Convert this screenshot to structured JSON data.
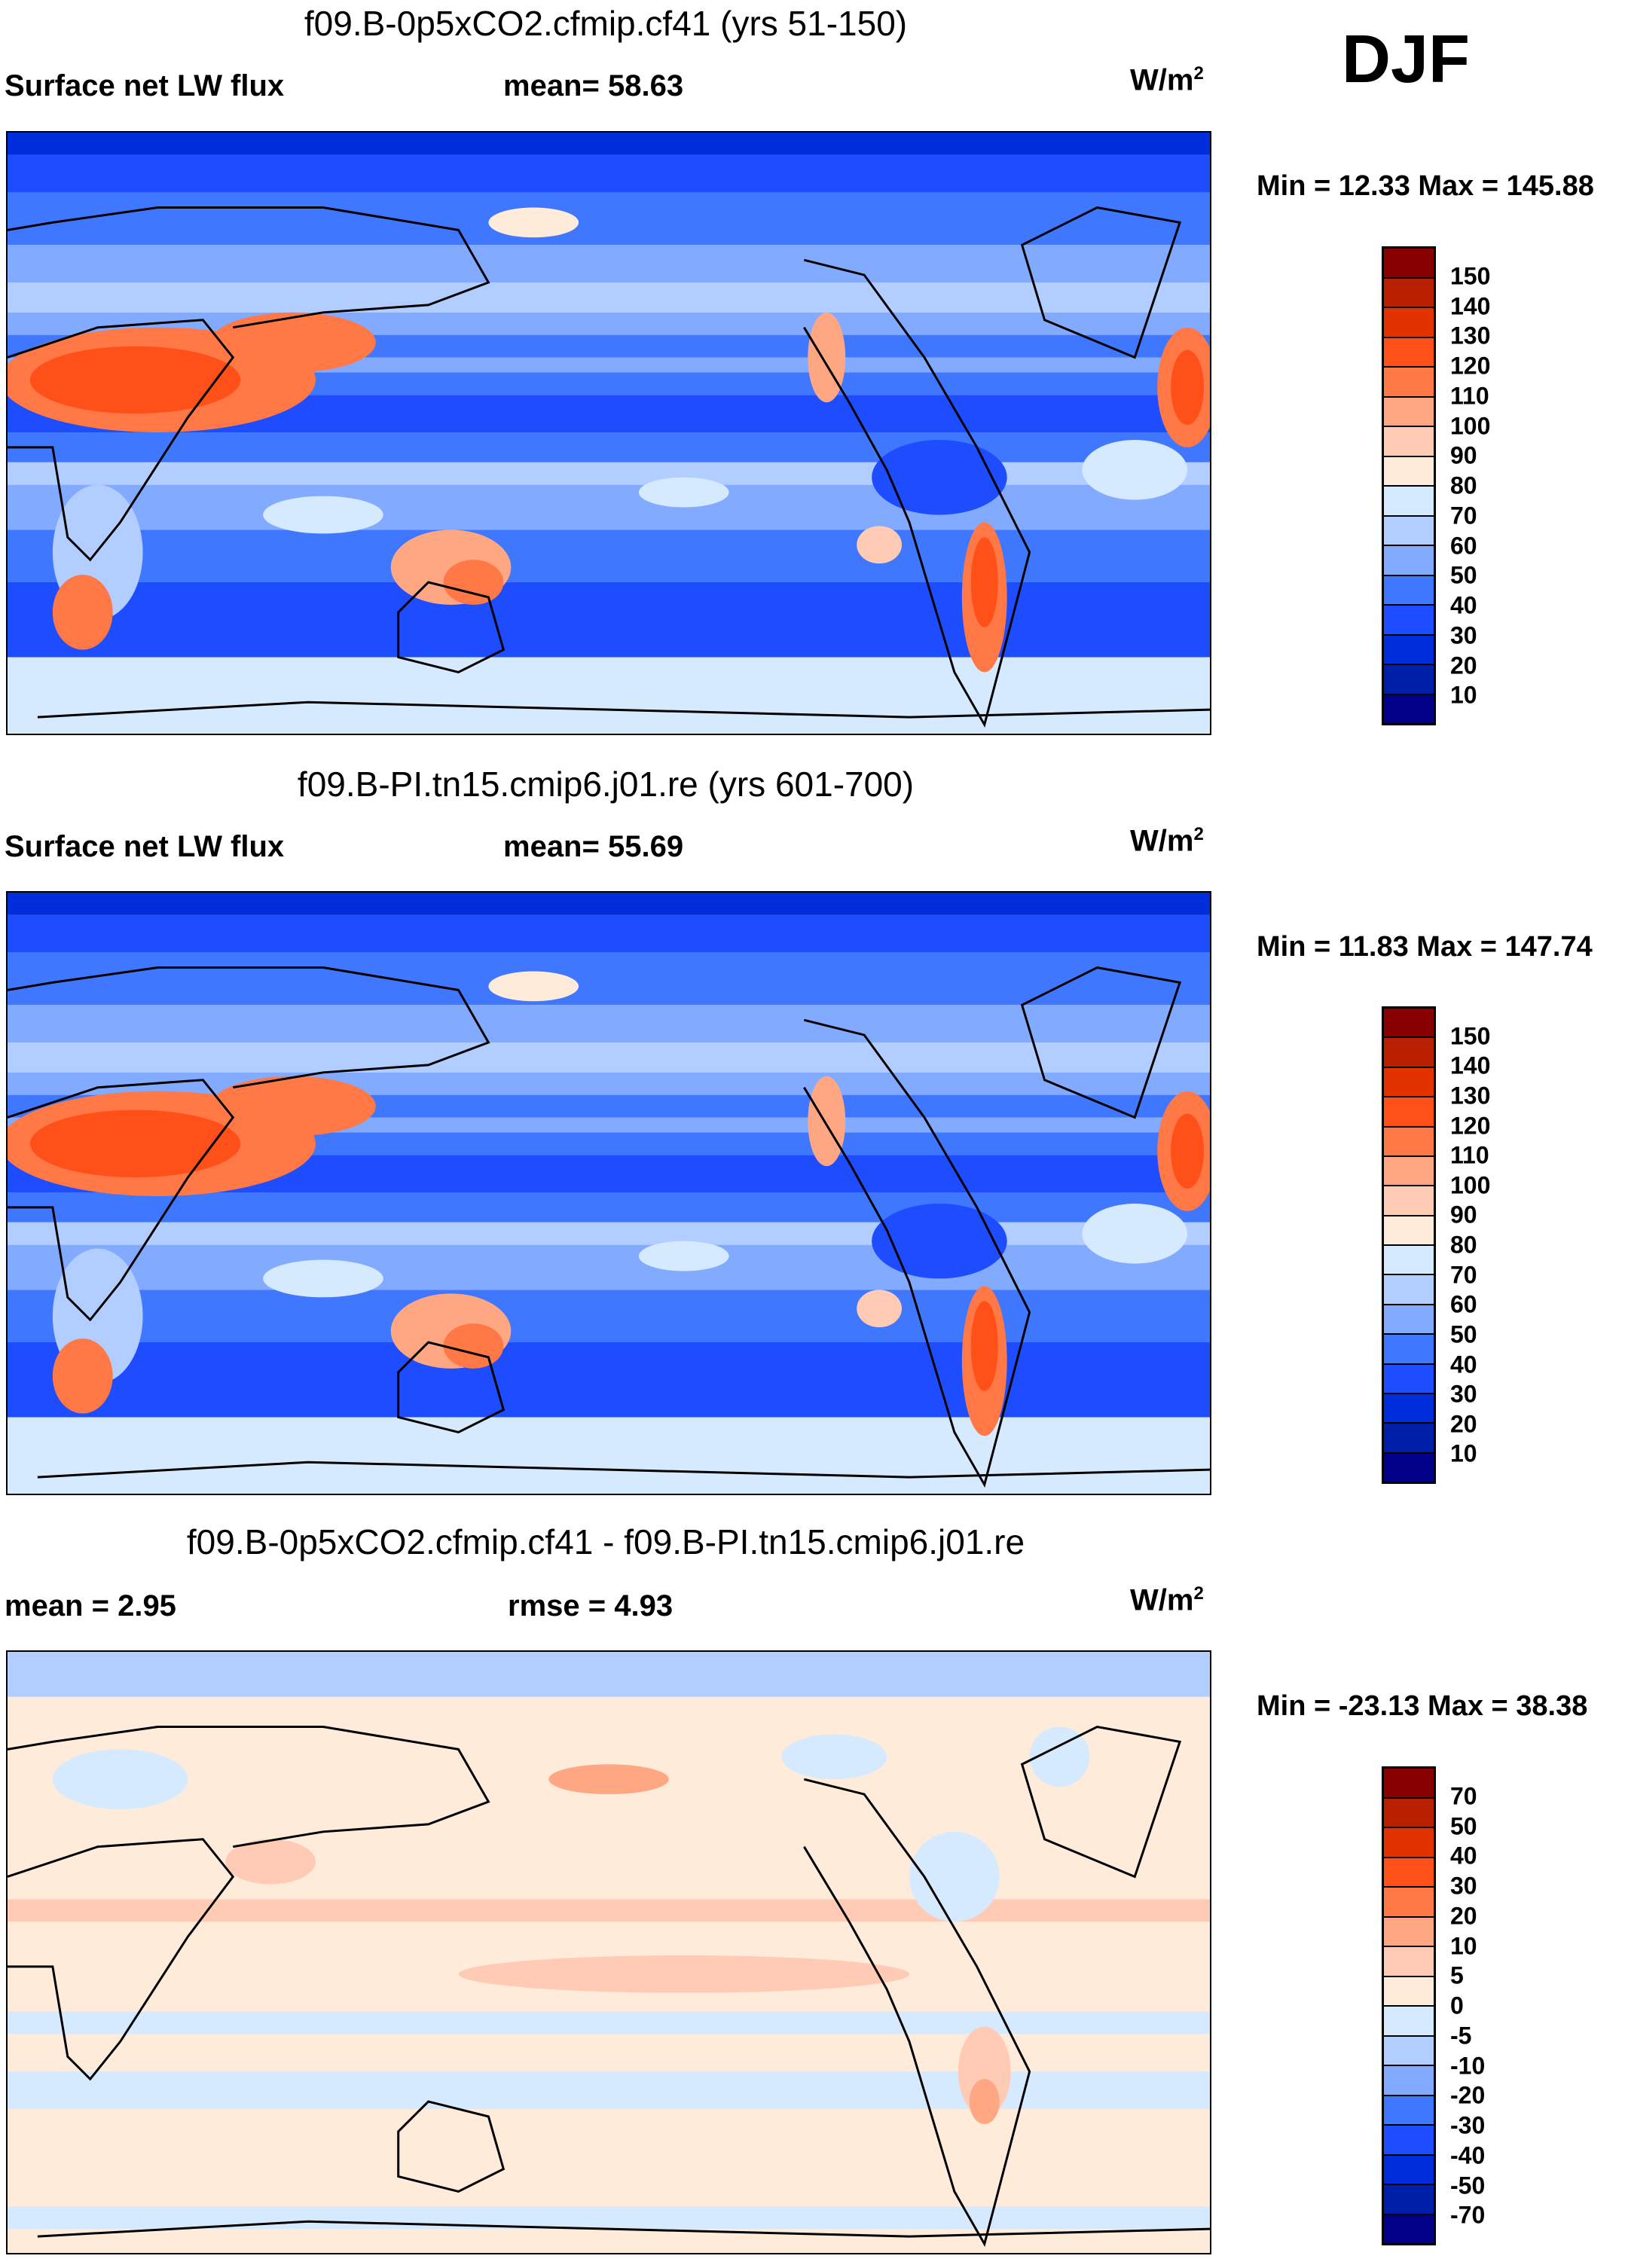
{
  "season": "DJF",
  "colors": [
    "#880000",
    "#B82000",
    "#E33200",
    "#FF5019",
    "#FF7845",
    "#FFA782",
    "#FFCBB4",
    "#FFEBDA",
    "#D6EAFF",
    "#B2CDFF",
    "#82AAFF",
    "#4077FF",
    "#1D4DFF",
    "#002DDB",
    "#001FA8",
    "#000088"
  ],
  "chart_data": [
    {
      "type": "heatmap",
      "title": "f09.B-0p5xCO2.cfmip.cf41 (yrs 51-150)",
      "left_label": "Surface net LW flux",
      "center_label": "mean=  58.63",
      "units": "W/m",
      "units_sup": "2",
      "minmax": "Min =  12.33 Max = 145.88",
      "mean": 58.63,
      "min": 12.33,
      "max": 145.88,
      "levels": [
        "150",
        "140",
        "130",
        "120",
        "110",
        "100",
        "90",
        "80",
        "70",
        "60",
        "50",
        "40",
        "30",
        "20",
        "10"
      ]
    },
    {
      "type": "heatmap",
      "title": "f09.B-PI.tn15.cmip6.j01.re (yrs 601-700)",
      "left_label": "Surface net LW flux",
      "center_label": "mean=  55.69",
      "units": "W/m",
      "units_sup": "2",
      "minmax": "Min =  11.83 Max = 147.74",
      "mean": 55.69,
      "min": 11.83,
      "max": 147.74,
      "levels": [
        "150",
        "140",
        "130",
        "120",
        "110",
        "100",
        "90",
        "80",
        "70",
        "60",
        "50",
        "40",
        "30",
        "20",
        "10"
      ]
    },
    {
      "type": "heatmap",
      "title": "f09.B-0p5xCO2.cfmip.cf41 - f09.B-PI.tn15.cmip6.j01.re",
      "left_label": "mean =   2.95",
      "center_label": "rmse =    4.93",
      "units": "W/m",
      "units_sup": "2",
      "minmax": "Min = -23.13 Max =  38.38",
      "mean": 2.95,
      "rmse": 4.93,
      "min": -23.13,
      "max": 38.38,
      "levels": [
        "70",
        "50",
        "40",
        "30",
        "20",
        "10",
        "5",
        "0",
        "-5",
        "-10",
        "-20",
        "-30",
        "-40",
        "-50",
        "-70"
      ]
    }
  ]
}
